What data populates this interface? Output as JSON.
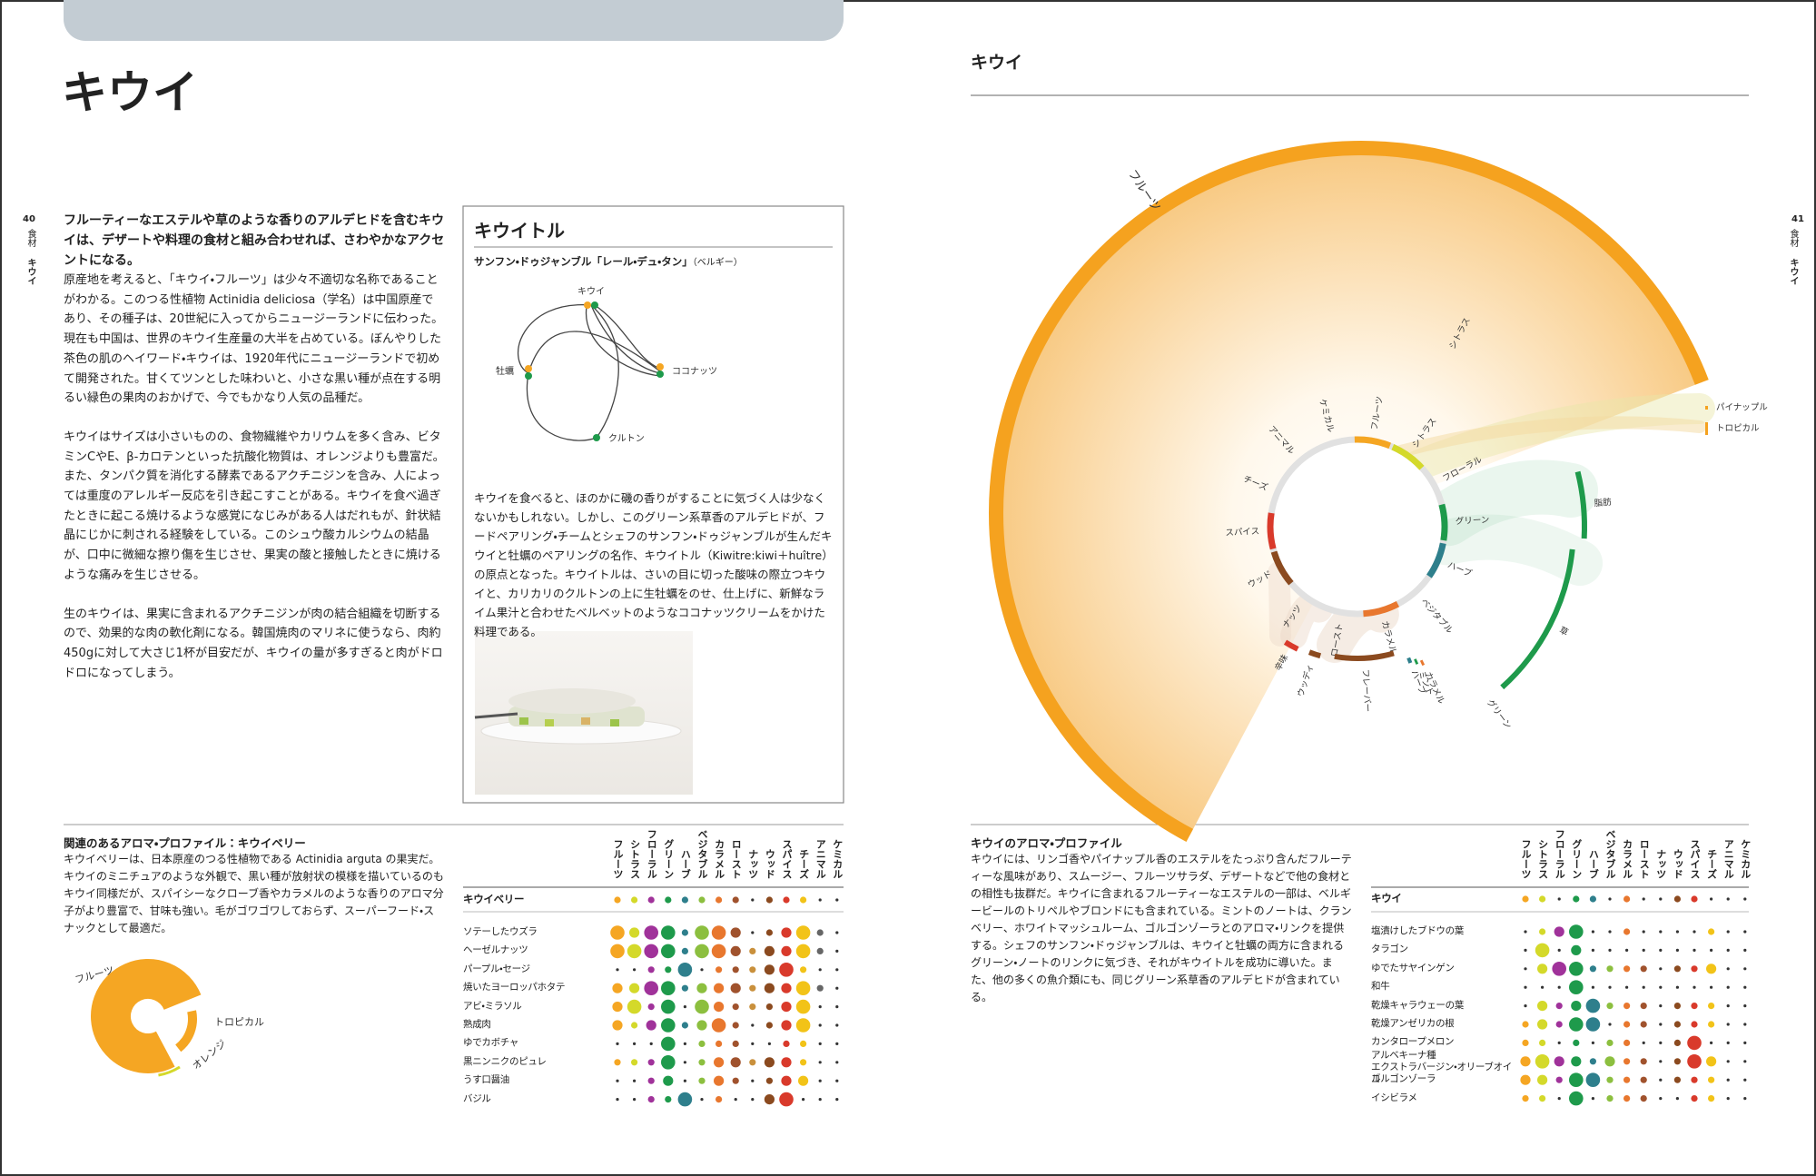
{
  "left_page": {
    "page_number": "40",
    "section": "食材",
    "running_head": "キウイ",
    "title": "キウイ",
    "lead": "フルーティーなエステルや草のような香りのアルデヒドを含むキウイは、デザートや料理の食材と組み合わせれば、さわやかなアクセントになる。",
    "body": [
      "原産地を考えると、「キウイ・フルーツ」は少々不適切な名称であることがわかる。このつる性植物 Actinidia deliciosa（学名）は中国原産であり、その種子は、20世紀に入ってからニュージーランドに伝わった。現在も中国は、世界のキウイ生産量の大半を占めている。ぼんやりした茶色の肌のヘイワード・キウイは、1920年代にニュージーランドで初めて開発された。甘くてツンとした味わいと、小さな黒い種が点在する明るい緑色の果肉のおかげで、今でもかなり人気の品種だ。",
      "キウイはサイズは小さいものの、食物繊維やカリウムを多く含み、ビタミンCやE、β-カロテンといった抗酸化物質は、オレンジよりも豊富だ。また、タンパク質を消化する酵素であるアクチニジンを含み、人によっては重度のアレルギー反応を引き起こすことがある。キウイを食べ過ぎたときに起こる焼けるような感覚になじみがある人はだれもが、針状結晶にじかに刺される経験をしている。このシュウ酸カルシウムの結晶が、口中に微細な擦り傷を生じさせ、果実の酸と接触したときに焼けるような痛みを生じさせる。",
      "生のキウイは、果実に含まれるアクチニジンが肉の結合組織を切断するので、効果的な肉の軟化剤になる。韓国焼肉のマリネに使うなら、肉約450gに対して大さじ1杯が目安だが、キウイの量が多すぎると肉がドロドロになってしまう。"
    ],
    "sidebar": {
      "title": "キウイトル",
      "subtitle": "サンフン・ドゥジャンブル「レール・デュ・タン」",
      "subtitle_note": "（ベルギー）",
      "nodes": [
        "キウイ",
        "牡蠣",
        "ココナッツ",
        "クルトン"
      ],
      "text": "キウイを食べると、ほのかに磯の香りがすることに気づく人は少なくないかもしれない。しかし、このグリーン系草香のアルデヒドが、フードペアリング・チームとシェフのサンフン・ドゥジャンブルが生んだキウイと牡蠣のペアリングの名作、キウイトル（Kiwitre:kiwi＋huître）の原点となった。キウイトルは、さいの目に切った酸味の際立つキウイと、カリカリのクルトンの上に生牡蠣をのせ、仕上げに、新鮮なライム果汁と合わせたベルベットのようなココナッツクリームをかけた料理である。"
    },
    "related": {
      "heading": "関連のあるアロマ・プロファイル：キウイベリー",
      "text": "キウイベリーは、日本原産のつる性植物である Actinidia arguta の果実だ。キウイのミニチュアのような外観で、黒い種が放射状の模様を描いているのもキウイ同様だが、スパイシーなクローブ香やカラメルのような香りのアロマ分子がより豊富で、甘味も強い。毛がゴワゴワしておらず、スーパーフード・スナックとして最適だ。",
      "donut_labels": [
        "フルーツ",
        "トロピカル",
        "オレンジ"
      ]
    }
  },
  "right_page": {
    "page_number": "41",
    "section": "食材",
    "running_head": "キウイ",
    "header": "キウイ",
    "wheel": {
      "outer_label": "フルーツ",
      "inner_labels": [
        "フルーツ",
        "シトラス",
        "フローラル",
        "グリーン",
        "ハーブ",
        "ベジタブル",
        "カラメル",
        "ロースト",
        "ナッツ",
        "ウッド",
        "スパイス",
        "チーズ",
        "アニマル",
        "ケミカル"
      ],
      "outer_labels": [
        "シトラス",
        "脂肪",
        "草",
        "グリーン",
        "ハーブ",
        "ミント",
        "カラメル",
        "フレーバー",
        "ウッディ",
        "辛味"
      ],
      "side_labels": [
        "パイナップル",
        "トロピカル"
      ]
    },
    "profile": {
      "heading": "キウイのアロマ・プロファイル",
      "text": "キウイには、リンゴ香やパイナップル香のエステルをたっぷり含んだフルーティーな風味があり、スムージー、フルーツサラダ、デザートなどで他の食材との相性も抜群だ。キウイに含まれるフルーティーなエステルの一部は、ベルギービールのトリペルやブロンドにも含まれている。ミントのノートは、クランベリー、ホワイトマッシュルーム、ゴルゴンゾーラとのアロマ・リンクを提供する。シェフのサンフン・ドゥジャンブルは、キウイと牡蠣の両方に含まれるグリーン・ノートのリンクに気づき、それがキウイトルを成功に導いた。また、他の多くの魚介類にも、同じグリーン系草香のアルデヒドが含まれている。"
    }
  },
  "aroma_columns": {
    "names": [
      "フルーツ",
      "シトラス",
      "フローラル",
      "グリーン",
      "ハーブ",
      "ベジタブル",
      "カラメル",
      "ロースト",
      "ナッツ",
      "ウッド",
      "スパイス",
      "チーズ",
      "アニマル",
      "ケミカル"
    ],
    "colors": [
      "#f5a623",
      "#d4d92a",
      "#a0329a",
      "#1e9a4b",
      "#2e7f8c",
      "#8cbf3f",
      "#e8772e",
      "#a0522d",
      "#c9903c",
      "#8b4a1f",
      "#d93a2b",
      "#f2c318",
      "#666666",
      "#999999"
    ]
  },
  "matrices": [
    {
      "key_row": {
        "name": "キウイベリー",
        "dots": [
          1,
          1,
          1,
          1,
          1,
          1,
          1,
          1,
          0,
          1,
          1,
          1,
          0,
          0
        ]
      },
      "rows": [
        {
          "name": "ソテーしたウズラ",
          "dots": [
            3,
            2,
            3,
            3,
            1,
            3,
            3,
            2,
            0,
            1,
            2,
            3,
            1,
            0
          ]
        },
        {
          "name": "ヘーゼルナッツ",
          "dots": [
            3,
            3,
            3,
            3,
            1,
            3,
            3,
            2,
            1,
            2,
            2,
            3,
            1,
            0
          ]
        },
        {
          "name": "パープル・セージ",
          "dots": [
            0,
            0,
            1,
            1,
            3,
            0,
            1,
            1,
            1,
            2,
            3,
            1,
            0,
            0
          ]
        },
        {
          "name": "焼いたヨーロッパホタテ",
          "dots": [
            2,
            2,
            3,
            3,
            1,
            2,
            2,
            2,
            1,
            2,
            2,
            3,
            1,
            0
          ]
        },
        {
          "name": "アビ・ミラソル",
          "dots": [
            2,
            3,
            1,
            3,
            0,
            3,
            2,
            1,
            1,
            1,
            2,
            3,
            0,
            0
          ]
        },
        {
          "name": "熟成肉",
          "dots": [
            2,
            1,
            2,
            3,
            1,
            2,
            3,
            1,
            0,
            1,
            2,
            3,
            0,
            0
          ]
        },
        {
          "name": "ゆでカボチャ",
          "dots": [
            0,
            0,
            0,
            3,
            0,
            1,
            1,
            1,
            0,
            0,
            1,
            1,
            0,
            0
          ]
        },
        {
          "name": "黒ニンニクのピュレ",
          "dots": [
            1,
            1,
            1,
            3,
            0,
            1,
            2,
            2,
            1,
            2,
            2,
            1,
            0,
            0
          ]
        },
        {
          "name": "うす口醤油",
          "dots": [
            0,
            0,
            1,
            2,
            0,
            1,
            2,
            1,
            0,
            1,
            2,
            2,
            0,
            0
          ]
        },
        {
          "name": "バジル",
          "dots": [
            0,
            0,
            1,
            1,
            3,
            0,
            1,
            0,
            0,
            2,
            3,
            0,
            0,
            0
          ]
        }
      ]
    },
    {
      "key_row": {
        "name": "キウイ",
        "dots": [
          1,
          1,
          0,
          1,
          1,
          0,
          1,
          0,
          0,
          1,
          1,
          0,
          0,
          0
        ]
      },
      "rows": [
        {
          "name": "塩漬けしたブドウの葉",
          "dots": [
            0,
            1,
            2,
            3,
            0,
            0,
            1,
            0,
            0,
            0,
            0,
            1,
            0,
            0
          ]
        },
        {
          "name": "タラゴン",
          "dots": [
            0,
            3,
            0,
            2,
            0,
            0,
            0,
            0,
            0,
            0,
            0,
            0,
            0,
            0
          ]
        },
        {
          "name": "ゆでたサヤインゲン",
          "dots": [
            0,
            2,
            3,
            3,
            1,
            1,
            1,
            1,
            0,
            1,
            1,
            2,
            0,
            0
          ]
        },
        {
          "name": "和牛",
          "dots": [
            0,
            0,
            0,
            3,
            0,
            0,
            0,
            0,
            0,
            0,
            0,
            0,
            0,
            0
          ]
        },
        {
          "name": "乾燥キャラウェーの葉",
          "dots": [
            0,
            2,
            1,
            2,
            3,
            1,
            1,
            1,
            0,
            1,
            1,
            1,
            0,
            0
          ]
        },
        {
          "name": "乾燥アンゼリカの根",
          "dots": [
            1,
            2,
            1,
            3,
            3,
            0,
            1,
            1,
            0,
            1,
            1,
            1,
            0,
            0
          ]
        },
        {
          "name": "カンタロープメロン",
          "dots": [
            1,
            1,
            0,
            1,
            0,
            1,
            1,
            0,
            0,
            1,
            3,
            0,
            0,
            0
          ]
        },
        {
          "name": "アルベキーナ種\nエクストラバージン・オリーブオイル",
          "dots": [
            2,
            3,
            2,
            2,
            1,
            2,
            1,
            1,
            0,
            1,
            3,
            2,
            0,
            0
          ]
        },
        {
          "name": "ゴルゴンゾーラ",
          "dots": [
            2,
            2,
            1,
            3,
            3,
            1,
            1,
            1,
            0,
            1,
            1,
            1,
            0,
            0
          ]
        },
        {
          "name": "イシビラメ",
          "dots": [
            1,
            1,
            0,
            3,
            0,
            1,
            1,
            1,
            0,
            0,
            1,
            1,
            0,
            0
          ]
        }
      ]
    }
  ]
}
